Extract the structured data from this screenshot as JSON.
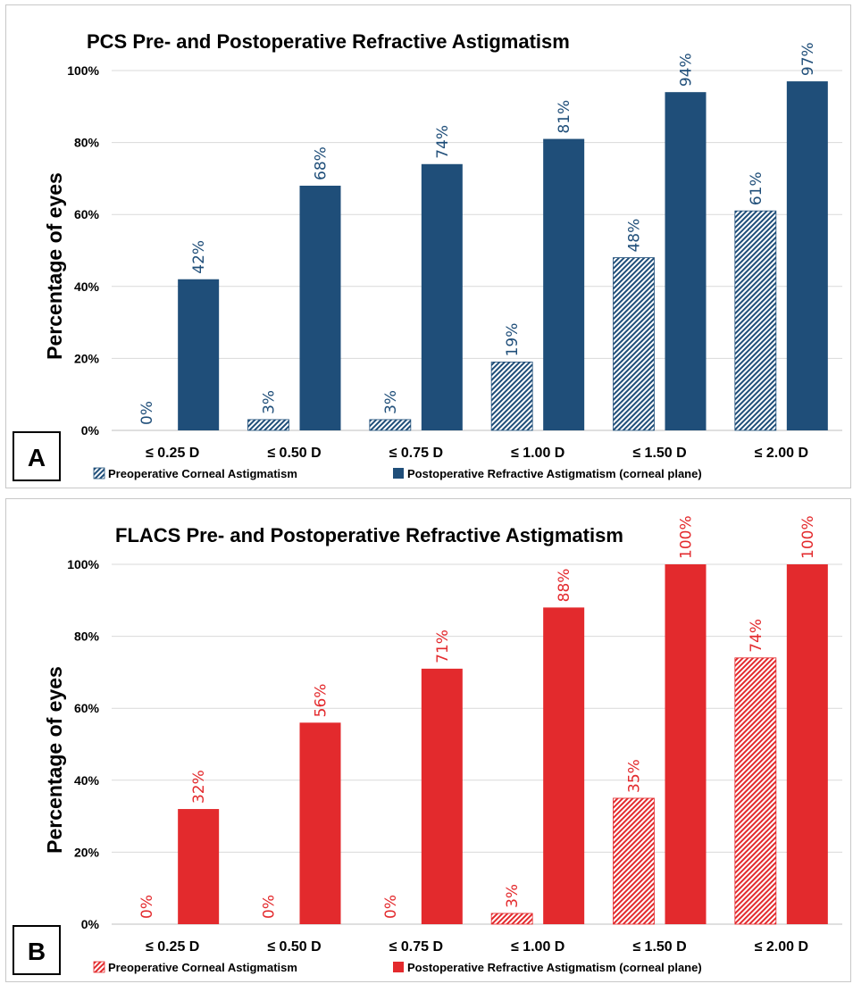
{
  "chart_data": [
    {
      "type": "bar",
      "panel_label": "A",
      "title": "PCS Pre- and Postoperative Refractive Astigmatism",
      "xlabel": "",
      "ylabel": "Percentage of eyes",
      "ylim": [
        0,
        100
      ],
      "yticks": [
        "0%",
        "20%",
        "40%",
        "60%",
        "80%",
        "100%"
      ],
      "grid": true,
      "legend_position": "bottom",
      "categories": [
        "≤ 0.25 D",
        "≤ 0.50 D",
        "≤ 0.75 D",
        "≤ 1.00 D",
        "≤ 1.50 D",
        "≤ 2.00 D"
      ],
      "color": "#1f4e79",
      "series": [
        {
          "name": "Preoperative Corneal Astigmatism",
          "pattern": "hatched",
          "values": [
            0,
            3,
            3,
            19,
            48,
            61
          ],
          "labels": [
            "0%",
            "3%",
            "3%",
            "19%",
            "48%",
            "61%"
          ]
        },
        {
          "name": "Postoperative Refractive Astigmatism (corneal plane)",
          "pattern": "solid",
          "values": [
            42,
            68,
            74,
            81,
            94,
            97
          ],
          "labels": [
            "42%",
            "68%",
            "74%",
            "81%",
            "94%",
            "97%"
          ]
        }
      ]
    },
    {
      "type": "bar",
      "panel_label": "B",
      "title": "FLACS Pre- and Postoperative Refractive Astigmatism",
      "xlabel": "",
      "ylabel": "Percentage of eyes",
      "ylim": [
        0,
        100
      ],
      "yticks": [
        "0%",
        "20%",
        "40%",
        "60%",
        "80%",
        "100%"
      ],
      "grid": true,
      "legend_position": "bottom",
      "categories": [
        "≤ 0.25 D",
        "≤ 0.50 D",
        "≤ 0.75 D",
        "≤ 1.00 D",
        "≤ 1.50 D",
        "≤ 2.00 D"
      ],
      "color": "#e32a2d",
      "series": [
        {
          "name": "Preoperative Corneal Astigmatism",
          "pattern": "hatched",
          "values": [
            0,
            0,
            0,
            3,
            35,
            74
          ],
          "labels": [
            "0%",
            "0%",
            "0%",
            "3%",
            "35%",
            "74%"
          ]
        },
        {
          "name": "Postoperative Refractive Astigmatism (corneal plane)",
          "pattern": "solid",
          "values": [
            32,
            56,
            71,
            88,
            100,
            100
          ],
          "labels": [
            "32%",
            "56%",
            "71%",
            "88%",
            "100%",
            "100%"
          ]
        }
      ]
    }
  ]
}
